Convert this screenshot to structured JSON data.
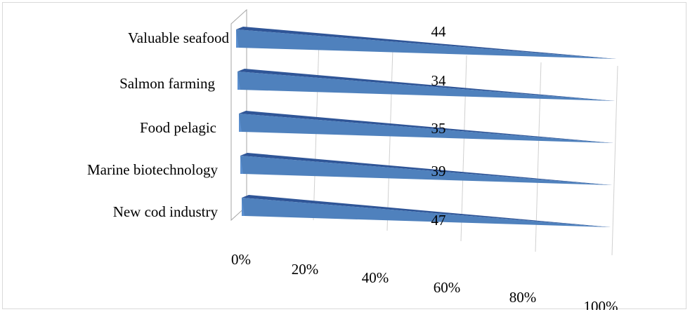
{
  "chart_data": {
    "type": "bar",
    "categories": [
      "Valuable seafood",
      "Salmon farming",
      "Food pelagic",
      "Marine biotechnology",
      "New cod industry"
    ],
    "values": [
      44,
      34,
      35,
      39,
      47
    ],
    "x_ticks": [
      "0%",
      "20%",
      "40%",
      "60%",
      "80%",
      "100%"
    ],
    "xlim": [
      0,
      100
    ],
    "title": "",
    "xlabel": "",
    "ylabel": "",
    "grid": true,
    "legend": "none",
    "bar_color": "#4f81bd",
    "bar_dark_color": "#2f5597",
    "data_labels": [
      "44",
      "34",
      "35",
      "39",
      "47"
    ]
  }
}
